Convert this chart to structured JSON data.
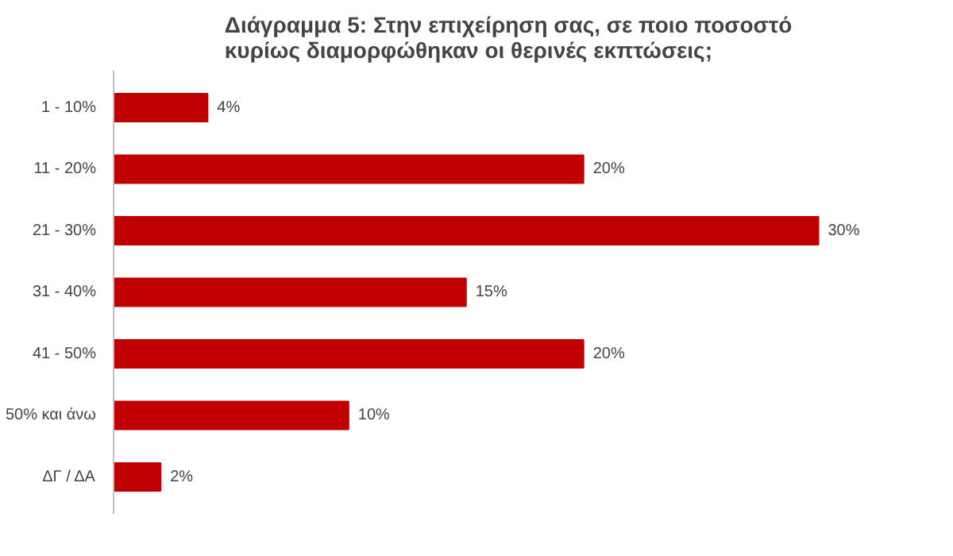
{
  "chart_data": {
    "type": "bar",
    "orientation": "horizontal",
    "title": "Διάγραμμα 5: Στην επιχείρηση σας, σε ποιο ποσοστό κυρίως διαμορφώθηκαν οι θερινές εκπτώσεις;",
    "categories": [
      "1 - 10%",
      "11 - 20%",
      "21 - 30%",
      "31 - 40%",
      "41 - 50%",
      "50% και άνω",
      "ΔΓ / ΔΑ"
    ],
    "values": [
      4,
      20,
      30,
      15,
      20,
      10,
      2
    ],
    "value_labels": [
      "4%",
      "20%",
      "30%",
      "15%",
      "20%",
      "10%",
      "2%"
    ],
    "color": "#c00000",
    "grid": false
  }
}
